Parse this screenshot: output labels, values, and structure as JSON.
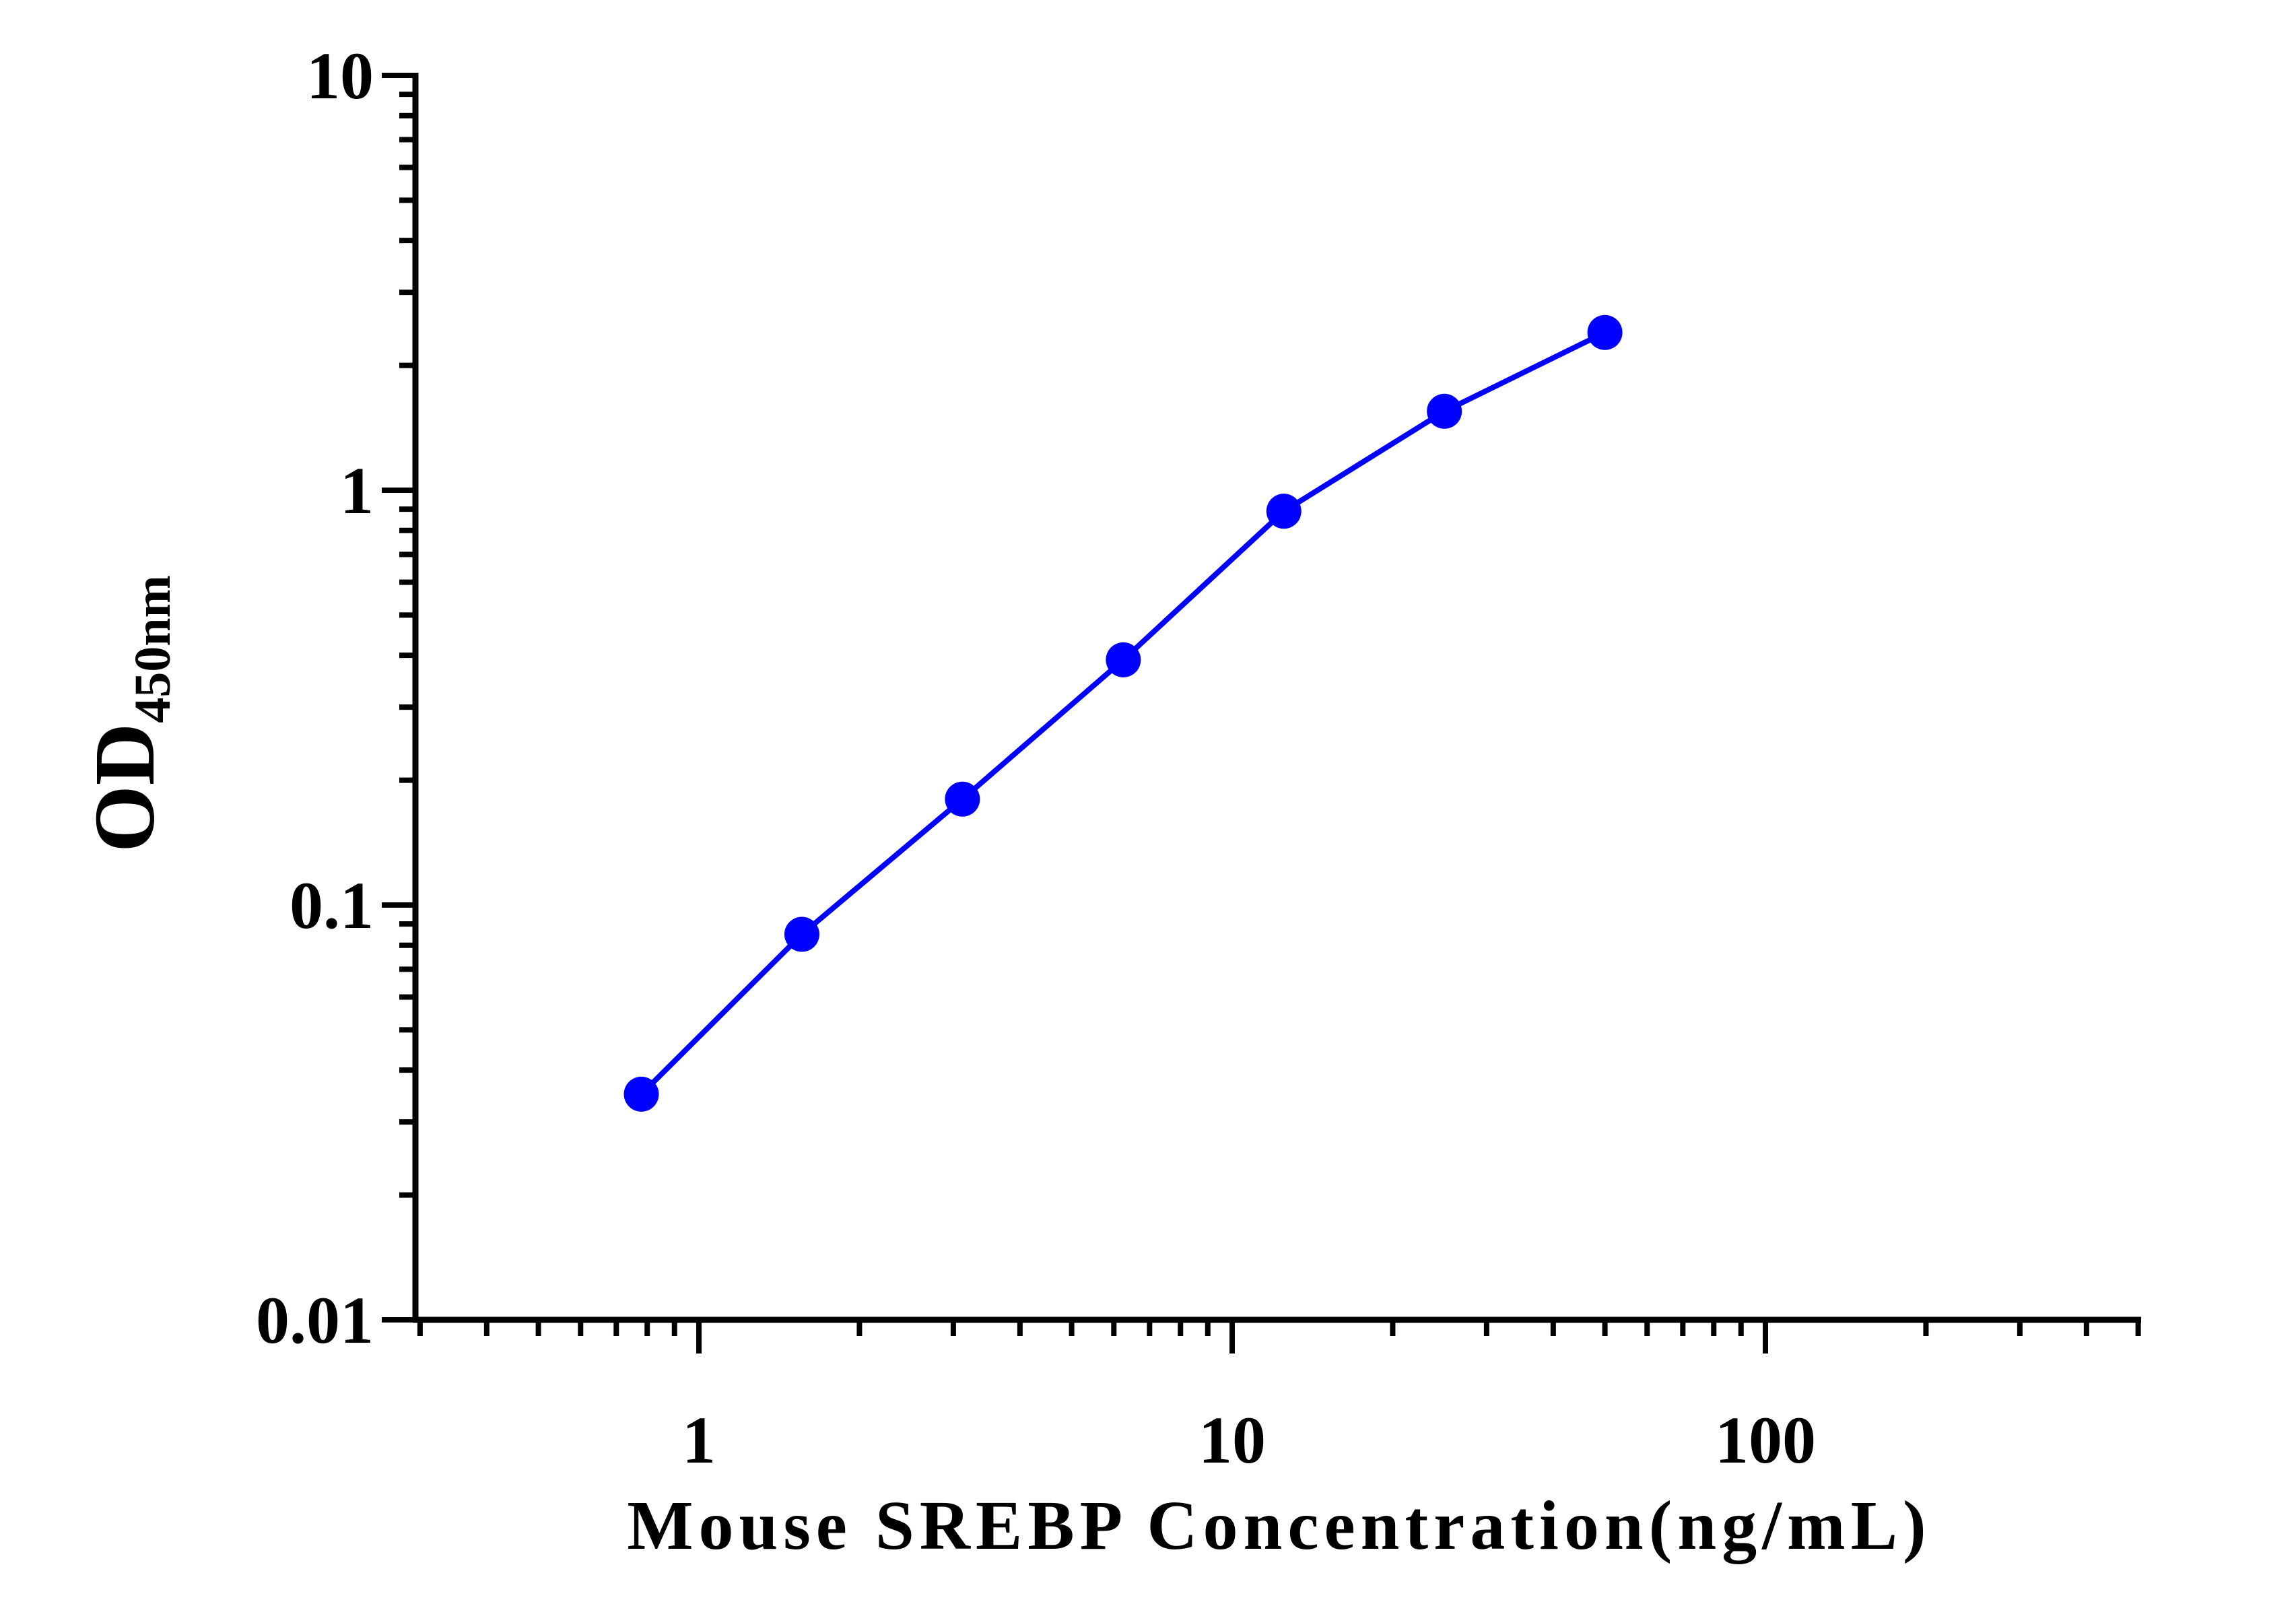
{
  "chart_data": {
    "type": "line",
    "x_scale": "log",
    "y_scale": "log",
    "xlabel": "Mouse SREBP Concentration(ng/mL)",
    "ylabel": {
      "main": "OD",
      "subscript": "450nm"
    },
    "xlim": [
      0.3,
      500
    ],
    "ylim": [
      0.01,
      10
    ],
    "x_tick_labels": [
      "1",
      "10",
      "100"
    ],
    "y_tick_labels": [
      "0.01",
      "0.1",
      "1",
      "10"
    ],
    "grid": false,
    "legend": "none",
    "series": [
      {
        "color": "#0000ff",
        "marker": "circle",
        "x": [
          0.78,
          1.56,
          3.12,
          6.25,
          12.5,
          25,
          50
        ],
        "y": [
          0.035,
          0.085,
          0.18,
          0.39,
          0.89,
          1.55,
          2.4
        ]
      }
    ]
  }
}
